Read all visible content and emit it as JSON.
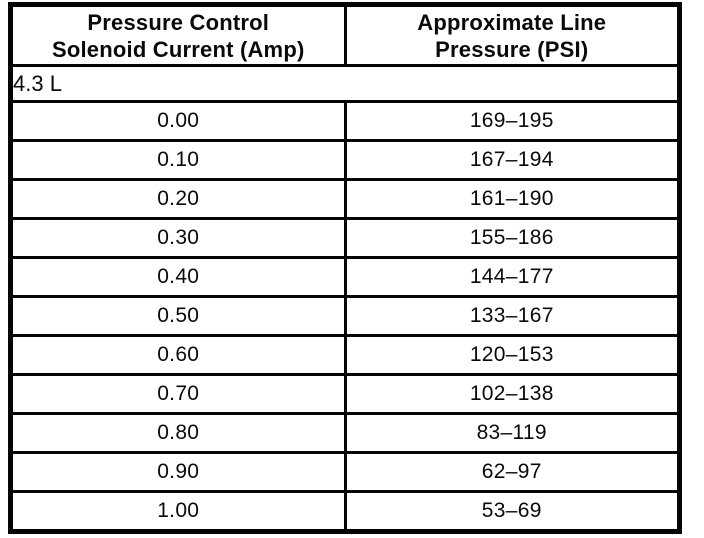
{
  "page": {
    "background_color": "#ffffff",
    "ink_color": "#050505"
  },
  "table": {
    "columns": [
      {
        "line1": "Pressure Control",
        "line2": "Solenoid Current (Amp)"
      },
      {
        "line1": "Approximate Line",
        "line2": "Pressure (PSI)"
      }
    ],
    "group_label": "4.3 L",
    "rows": [
      {
        "current": "0.00",
        "pressure": "169–195"
      },
      {
        "current": "0.10",
        "pressure": "167–194"
      },
      {
        "current": "0.20",
        "pressure": "161–190"
      },
      {
        "current": "0.30",
        "pressure": "155–186"
      },
      {
        "current": "0.40",
        "pressure": "144–177"
      },
      {
        "current": "0.50",
        "pressure": "133–167"
      },
      {
        "current": "0.60",
        "pressure": "120–153"
      },
      {
        "current": "0.70",
        "pressure": "102–138"
      },
      {
        "current": "0.80",
        "pressure": "83–119"
      },
      {
        "current": "0.90",
        "pressure": "62–97"
      },
      {
        "current": "1.00",
        "pressure": "53–69"
      }
    ]
  }
}
